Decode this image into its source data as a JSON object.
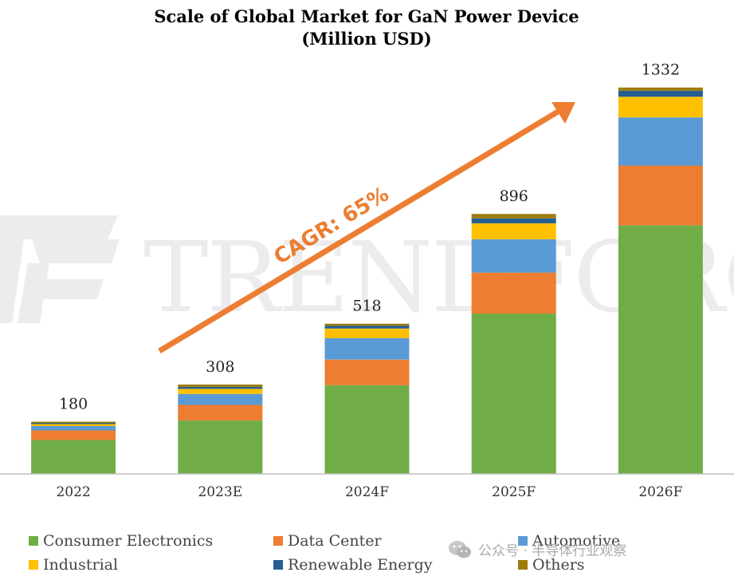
{
  "chart_data": {
    "type": "bar",
    "stacked": true,
    "title": [
      "Scale of Global Market for GaN Power Device",
      "(Million USD)"
    ],
    "categories": [
      "2022",
      "2023E",
      "2024F",
      "2025F",
      "2026F"
    ],
    "totals": [
      180,
      308,
      518,
      896,
      1332
    ],
    "ylim": [
      0,
      1400
    ],
    "series": [
      {
        "name": "Consumer Electronics",
        "color": "#70AD47",
        "values": [
          117,
          184,
          306,
          553,
          857
        ]
      },
      {
        "name": "Data Center",
        "color": "#ED7D31",
        "values": [
          33,
          54,
          88,
          141,
          206
        ]
      },
      {
        "name": "Automotive",
        "color": "#5B9BD5",
        "values": [
          15,
          38,
          74,
          115,
          166
        ]
      },
      {
        "name": "Industrial",
        "color": "#FFC000",
        "values": [
          7,
          17,
          33,
          55,
          71
        ]
      },
      {
        "name": "Renewable Energy",
        "color": "#255E91",
        "values": [
          4,
          7,
          10,
          17,
          21
        ]
      },
      {
        "name": "Others",
        "color": "#9E7C0C",
        "values": [
          4,
          8,
          7,
          15,
          11
        ]
      }
    ],
    "annotation": "CAGR: 65%",
    "grid": false,
    "legend_position": "bottom"
  },
  "watermark": {
    "text": "TRENDFORCE"
  },
  "wechat": {
    "label": "公众号 · 半导体行业观察"
  }
}
